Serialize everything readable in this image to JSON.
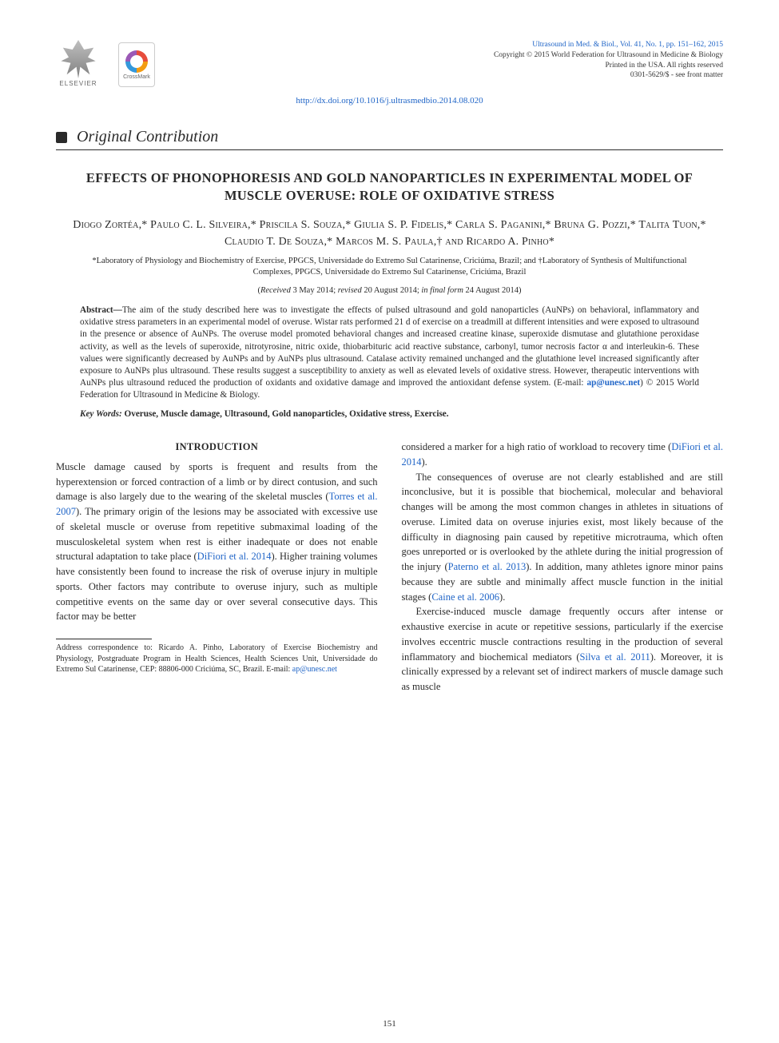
{
  "header": {
    "elsevier_label": "ELSEVIER",
    "crossmark_label": "CrossMark",
    "pub_lines": [
      "Ultrasound in Med. & Biol., Vol. 41, No. 1, pp. 151–162, 2015",
      "Copyright © 2015 World Federation for Ultrasound in Medicine & Biology",
      "Printed in the USA. All rights reserved",
      "0301-5629/$ - see front matter"
    ],
    "doi": "http://dx.doi.org/10.1016/j.ultrasmedbio.2014.08.020"
  },
  "section_label": "Original Contribution",
  "title": "EFFECTS OF PHONOPHORESIS AND GOLD NANOPARTICLES IN EXPERIMENTAL MODEL OF MUSCLE OVERUSE: ROLE OF OXIDATIVE STRESS",
  "authors_html": "Diogo Zortéa,* Paulo C. L. Silveira,* Priscila S. Souza,* Giulia S. P. Fidelis,* Carla S. Paganini,* Bruna G. Pozzi,* Talita Tuon,* Claudio T. De Souza,* Marcos M. S. Paula,† and Ricardo A. Pinho*",
  "affiliations": "*Laboratory of Physiology and Biochemistry of Exercise, PPGCS, Universidade do Extremo Sul Catarinense, Criciúma, Brazil; and †Laboratory of Synthesis of Multifunctional Complexes, PPGCS, Universidade do Extremo Sul Catarinense, Criciúma, Brazil",
  "dates": {
    "received_lbl": "Received",
    "received": "3 May 2014",
    "revised_lbl": "revised",
    "revised": "20 August 2014",
    "final_lbl": "in final form",
    "final": "24 August 2014"
  },
  "abstract": {
    "lead": "Abstract—",
    "body": "The aim of the study described here was to investigate the effects of pulsed ultrasound and gold nanoparticles (AuNPs) on behavioral, inflammatory and oxidative stress parameters in an experimental model of overuse. Wistar rats performed 21 d of exercise on a treadmill at different intensities and were exposed to ultrasound in the presence or absence of AuNPs. The overuse model promoted behavioral changes and increased creatine kinase, superoxide dismutase and glutathione peroxidase activity, as well as the levels of superoxide, nitrotyrosine, nitric oxide, thiobarbituric acid reactive substance, carbonyl, tumor necrosis factor α and interleukin-6. These values were significantly decreased by AuNPs and by AuNPs plus ultrasound. Catalase activity remained unchanged and the glutathione level increased significantly after exposure to AuNPs plus ultrasound. These results suggest a susceptibility to anxiety as well as elevated levels of oxidative stress. However, therapeutic interventions with AuNPs plus ultrasound reduced the production of oxidants and oxidative damage and improved the antioxidant defense system.  (E-mail: ",
    "email": "ap@unesc.net",
    "tail": ")   © 2015 World Federation for Ultrasound in Medicine & Biology."
  },
  "keywords": {
    "label": "Key Words:",
    "values": " Overuse, Muscle damage, Ultrasound, Gold nanoparticles, Oxidative stress, Exercise."
  },
  "intro_heading": "INTRODUCTION",
  "col1": {
    "p1a": "Muscle damage caused by sports is frequent and results from the hyperextension or forced contraction of a limb or by direct contusion, and such damage is also largely due to the wearing of the skeletal muscles (",
    "c1": "Torres et al. 2007",
    "p1b": "). The primary origin of the lesions may be associated with excessive use of skeletal muscle or overuse from repetitive submaximal loading of the musculoskeletal system when rest is either inadequate or does not enable structural adaptation to take place (",
    "c2": "DiFiori et al. 2014",
    "p1c": "). Higher training volumes have consistently been found to increase the risk of overuse injury in multiple sports. Other factors may contribute to overuse injury, such as multiple competitive events on the same day or over several consecutive days. This factor may be better"
  },
  "col2": {
    "p1a": "considered a marker for a high ratio of workload to recovery time (",
    "c1": "DiFiori et al. 2014",
    "p1b": ").",
    "p2a": "The consequences of overuse are not clearly established and are still inconclusive, but it is possible that biochemical, molecular and behavioral changes will be among the most common changes in athletes in situations of overuse. Limited data on overuse injuries exist, most likely because of the difficulty in diagnosing pain caused by repetitive microtrauma, which often goes unreported or is overlooked by the athlete during the initial progression of the injury (",
    "c2": "Paterno et al. 2013",
    "p2b": "). In addition, many athletes ignore minor pains because they are subtle and minimally affect muscle function in the initial stages (",
    "c3": "Caine et al. 2006",
    "p2c": ").",
    "p3a": "Exercise-induced muscle damage frequently occurs after intense or exhaustive exercise in acute or repetitive sessions, particularly if the exercise involves eccentric muscle contractions resulting in the production of several inflammatory and biochemical mediators (",
    "c4": "Silva et al. 2011",
    "p3b": "). Moreover, it is clinically expressed by a relevant set of indirect markers of muscle damage such as muscle"
  },
  "footnote": {
    "text": "Address correspondence to: Ricardo A. Pinho, Laboratory of Exercise Biochemistry and Physiology, Postgraduate Program in Health Sciences, Health Sciences Unit, Universidade do Extremo Sul Catarinense, CEP: 88806-000 Criciúma, SC, Brazil. E-mail: ",
    "email": "ap@unesc.net"
  },
  "page_number": "151",
  "colors": {
    "link": "#2065c7",
    "text": "#2a2a2a"
  }
}
